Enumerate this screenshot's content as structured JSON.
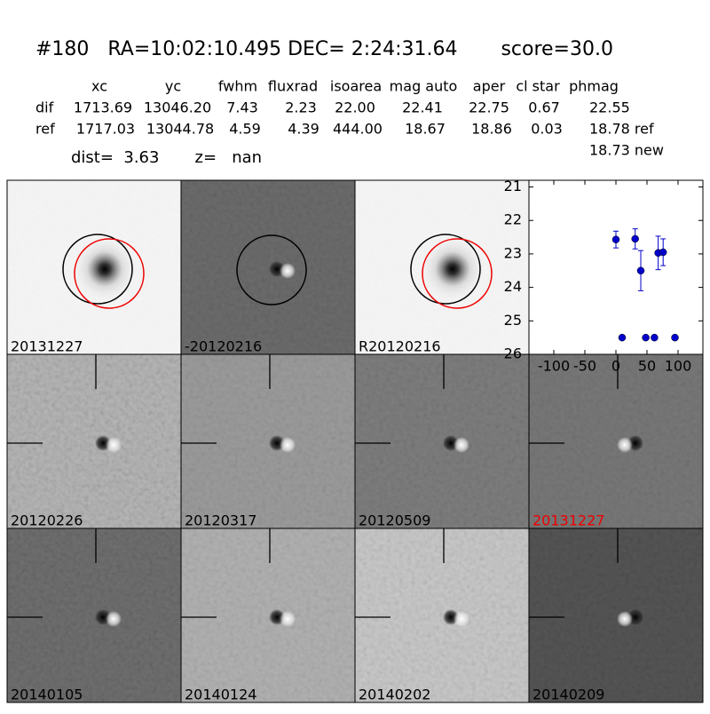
{
  "header": {
    "title": "#180   RA=10:02:10.495 DEC= 2:24:31.64       score=30.0",
    "dist": "dist=  3.63       z=   nan"
  },
  "table": {
    "columns": [
      "xc",
      "yc",
      "fwhm",
      "fluxrad",
      "isoarea",
      "mag auto",
      "aper",
      "cl star",
      "phmag"
    ],
    "rows": [
      {
        "label": "dif",
        "cells": [
          "1713.69",
          "13046.20",
          "7.43",
          "2.23",
          "22.00",
          "22.41",
          "22.75",
          "0.67",
          "22.55"
        ]
      },
      {
        "label": "ref",
        "cells": [
          "1717.03",
          "13044.78",
          "4.59",
          "4.39",
          "444.00",
          "18.67",
          "18.86",
          "0.03",
          "18.78 ref"
        ]
      }
    ],
    "extra": "18.73 new"
  },
  "panels": [
    {
      "label": "20131227"
    },
    {
      "label": "-20120216"
    },
    {
      "label": "R20120216"
    },
    {
      "label": "20120226"
    },
    {
      "label": "20120317"
    },
    {
      "label": "20120509"
    },
    {
      "label": "20131227"
    },
    {
      "label": "20140105"
    },
    {
      "label": "20140124"
    },
    {
      "label": "20140202"
    },
    {
      "label": "20140209"
    }
  ],
  "chart_data": {
    "type": "scatter",
    "color": "#0000cc",
    "x": [
      0,
      10,
      31,
      40,
      48,
      62,
      68,
      76,
      95
    ],
    "values": [
      22.57,
      25.5,
      22.55,
      23.5,
      25.5,
      25.5,
      22.97,
      22.95,
      25.5
    ],
    "errors": [
      0.25,
      0,
      0.3,
      0.6,
      0,
      0,
      0.5,
      0.4,
      0
    ],
    "xlim": [
      -140,
      140
    ],
    "ylim": [
      26,
      20.8
    ],
    "xticks": [
      -100,
      -50,
      0,
      50,
      100
    ],
    "yticks": [
      21,
      22,
      23,
      24,
      25,
      26
    ]
  }
}
